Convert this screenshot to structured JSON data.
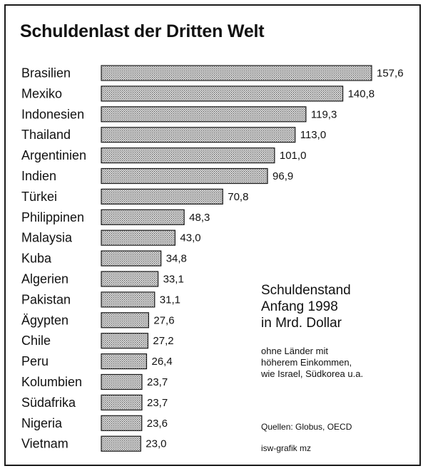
{
  "chart_data": {
    "type": "bar",
    "orientation": "horizontal",
    "title": "Schuldenlast der Dritten Welt",
    "categories": [
      "Brasilien",
      "Mexiko",
      "Indonesien",
      "Thailand",
      "Argentinien",
      "Indien",
      "Türkei",
      "Philippinen",
      "Malaysia",
      "Kuba",
      "Algerien",
      "Pakistan",
      "Ägypten",
      "Chile",
      "Peru",
      "Kolumbien",
      "Südafrika",
      "Nigeria",
      "Vietnam"
    ],
    "values": [
      157.6,
      140.8,
      119.3,
      113.0,
      101.0,
      96.9,
      70.8,
      48.3,
      43.0,
      34.8,
      33.1,
      31.1,
      27.6,
      27.2,
      26.4,
      23.7,
      23.7,
      23.6,
      23.0
    ],
    "value_labels": [
      "157,6",
      "140,8",
      "119,3",
      "113,0",
      "101,0",
      "96,9",
      "70,8",
      "48,3",
      "43,0",
      "34,8",
      "33,1",
      "31,1",
      "27,6",
      "27,2",
      "26,4",
      "23,7",
      "23,7",
      "23,6",
      "23,0"
    ],
    "xlim": [
      0,
      157.6
    ],
    "grid": false,
    "bar_fill": "dotted-gray"
  },
  "annotation": {
    "main": [
      "Schuldenstand",
      "Anfang 1998",
      "in Mrd. Dollar"
    ],
    "sub": [
      "ohne Länder mit",
      "höherem Einkommen,",
      "wie Israel, Südkorea u.a."
    ],
    "sources": "Quellen: Globus, OECD",
    "credit": "isw-grafik mz"
  },
  "colors": {
    "bar_dots": "#555555",
    "bar_bg": "#e4e4e4",
    "border": "#1a1a1a"
  }
}
